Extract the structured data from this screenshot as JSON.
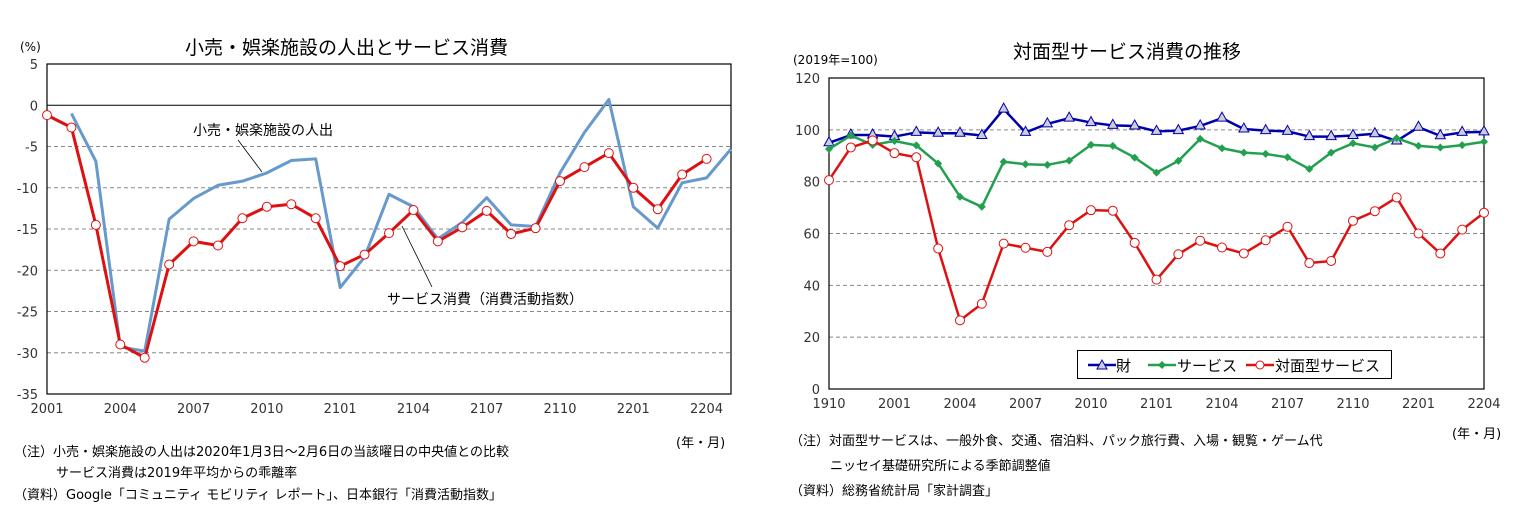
{
  "chart_data": [
    {
      "type": "line",
      "title": "小売・娯楽施設の人出とサービス消費",
      "ylabel": "(%)",
      "xlabel": "(年・月)",
      "ylim": [
        -35,
        5
      ],
      "yticks": [
        5,
        0,
        -5,
        -10,
        -15,
        -20,
        -25,
        -30,
        -35
      ],
      "grid": true,
      "x": [
        "2001",
        "2002",
        "2003",
        "2004",
        "2005",
        "2006",
        "2007",
        "2008",
        "2009",
        "2010",
        "2011",
        "2012",
        "2101",
        "2102",
        "2103",
        "2104",
        "2105",
        "2106",
        "2107",
        "2108",
        "2109",
        "2110",
        "2111",
        "2112",
        "2201",
        "2202",
        "2203",
        "2204",
        "2205"
      ],
      "xtick_labels": [
        "2001",
        "2004",
        "2007",
        "2010",
        "2101",
        "2104",
        "2107",
        "2110",
        "2201",
        "2204"
      ],
      "series": [
        {
          "name": "小売・娯楽施設の人出",
          "color": "#6699cc",
          "values": [
            null,
            -1.0,
            -6.8,
            -29.3,
            -29.8,
            -13.8,
            -11.3,
            -9.7,
            -9.2,
            -8.2,
            -6.7,
            -6.5,
            -22.1,
            -18.4,
            -10.8,
            -12.3,
            -16.2,
            -14.2,
            -11.2,
            -14.5,
            -14.7,
            -8.2,
            -3.3,
            0.7,
            -12.3,
            -14.9,
            -9.4,
            -8.8,
            -5.3
          ]
        },
        {
          "name": "サービス消費（消費活動指数）",
          "color": "#dd1111",
          "values": [
            -1.2,
            -2.7,
            -14.5,
            -29.0,
            -30.6,
            -19.3,
            -16.5,
            -17.0,
            -13.7,
            -12.3,
            -12.0,
            -13.7,
            -19.5,
            -18.1,
            -15.5,
            -12.7,
            -16.5,
            -14.8,
            -12.8,
            -15.6,
            -14.9,
            -9.2,
            -7.5,
            -5.8,
            -10.0,
            -12.6,
            -8.4,
            -6.5,
            null
          ]
        }
      ],
      "notes": [
        "（注）小売・娯楽施設の人出は2020年1月3日～2月6日の当該曜日の中央値との比較",
        "サービス消費は2019年平均からの乖離率",
        "（資料）Google「コミュニティ モビリティ レポート」、日本銀行「消費活動指数」"
      ]
    },
    {
      "type": "line",
      "title": "対面型サービス消費の推移",
      "ylabel": "(2019年=100)",
      "xlabel": "(年・月)",
      "ylim": [
        0,
        120
      ],
      "yticks": [
        120,
        100,
        80,
        60,
        40,
        20,
        0
      ],
      "grid": true,
      "legend": "bottom-right",
      "x": [
        "1910",
        "1911",
        "1912",
        "2001",
        "2002",
        "2003",
        "2004",
        "2005",
        "2006",
        "2007",
        "2008",
        "2009",
        "2010",
        "2011",
        "2012",
        "2101",
        "2102",
        "2103",
        "2104",
        "2105",
        "2106",
        "2107",
        "2108",
        "2109",
        "2110",
        "2111",
        "2112",
        "2201",
        "2202",
        "2203",
        "2204"
      ],
      "xtick_labels": [
        "1910",
        "2001",
        "2004",
        "2007",
        "2010",
        "2101",
        "2104",
        "2107",
        "2110",
        "2201",
        "2204"
      ],
      "series": [
        {
          "name": "財",
          "color": "#0000aa",
          "marker": "triangle",
          "values": [
            95,
            98,
            98,
            97.4,
            99,
            98.7,
            98.7,
            97.8,
            108,
            99,
            102.3,
            104.5,
            102.8,
            101.7,
            101.5,
            99.4,
            99.7,
            101.5,
            104.5,
            100.3,
            99.7,
            99.4,
            97.4,
            97.4,
            97.8,
            98.5,
            95.7,
            101,
            97.7,
            99,
            99.2
          ]
        },
        {
          "name": "サービス",
          "color": "#22a050",
          "marker": "diamond",
          "values": [
            92.6,
            97.8,
            94.2,
            95.7,
            94,
            87,
            74.2,
            70.3,
            87.7,
            86.7,
            86.5,
            88.1,
            94.2,
            93.8,
            89.3,
            83.5,
            88,
            96.5,
            92.9,
            91.2,
            90.7,
            89.4,
            84.9,
            91.2,
            94.8,
            93.2,
            96.8,
            93.8,
            93.2,
            94.1,
            95.4
          ]
        },
        {
          "name": "対面型サービス",
          "color": "#dd1111",
          "marker": "circle",
          "values": [
            80.6,
            93.2,
            95.9,
            91,
            89.4,
            54.2,
            26.5,
            32.9,
            56.1,
            54.5,
            52.9,
            63.2,
            69,
            68.8,
            56.4,
            42.2,
            52,
            57.2,
            54.6,
            52.3,
            57.4,
            62.6,
            48.6,
            49.4,
            64.9,
            68.6,
            73.9,
            60,
            52.3,
            61.5,
            68
          ]
        }
      ],
      "notes": [
        "（注）対面型サービスは、一般外食、交通、宿泊料、パック旅行費、入場・観覧・ゲーム代",
        "ニッセイ基礎研究所による季節調整値",
        "（資料）総務省統計局「家計調査」"
      ]
    }
  ]
}
